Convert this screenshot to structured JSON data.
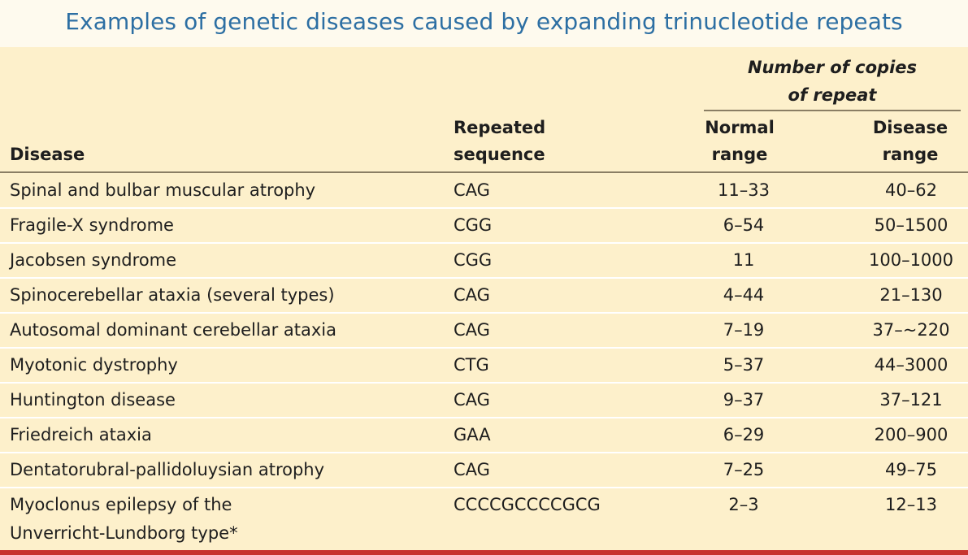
{
  "title": "Examples of genetic diseases caused by expanding trinucleotide repeats",
  "header": {
    "group_line1": "Number of copies",
    "group_line2": "of repeat",
    "disease": "Disease",
    "sequence_line1": "Repeated",
    "sequence_line2": "sequence",
    "normal_line1": "Normal",
    "normal_line2": "range",
    "disease_range_line1": "Disease",
    "disease_range_line2": "range"
  },
  "rows": [
    {
      "disease": "Spinal and bulbar muscular atrophy",
      "sequence": "CAG",
      "normal": "11–33",
      "disease_range": "40–62"
    },
    {
      "disease": "Fragile-X syndrome",
      "sequence": "CGG",
      "normal": "6–54",
      "disease_range": "50–1500"
    },
    {
      "disease": "Jacobsen syndrome",
      "sequence": "CGG",
      "normal": "11",
      "disease_range": "100–1000"
    },
    {
      "disease": "Spinocerebellar ataxia (several types)",
      "sequence": "CAG",
      "normal": "4–44",
      "disease_range": "21–130"
    },
    {
      "disease": "Autosomal dominant cerebellar ataxia",
      "sequence": "CAG",
      "normal": "7–19",
      "disease_range": "37–~220"
    },
    {
      "disease": "Myotonic dystrophy",
      "sequence": "CTG",
      "normal": "5–37",
      "disease_range": "44–3000"
    },
    {
      "disease": "Huntington disease",
      "sequence": "CAG",
      "normal": "9–37",
      "disease_range": "37–121"
    },
    {
      "disease": "Friedreich ataxia",
      "sequence": "GAA",
      "normal": "6–29",
      "disease_range": "200–900"
    },
    {
      "disease": "Dentatorubral-pallidoluysian atrophy",
      "sequence": "CAG",
      "normal": "7–25",
      "disease_range": "49–75"
    },
    {
      "disease_line1": "Myoclonus epilepsy of the",
      "disease_line2": "Unverricht-Lundborg type*",
      "sequence": "CCCCGCCCCGCG",
      "normal": "2–3",
      "disease_range": "12–13"
    }
  ],
  "colors": {
    "title": "#2d6fa3",
    "background": "#fdf0cb",
    "title_band": "#fefaee",
    "bottom_rule": "#c8342e"
  }
}
